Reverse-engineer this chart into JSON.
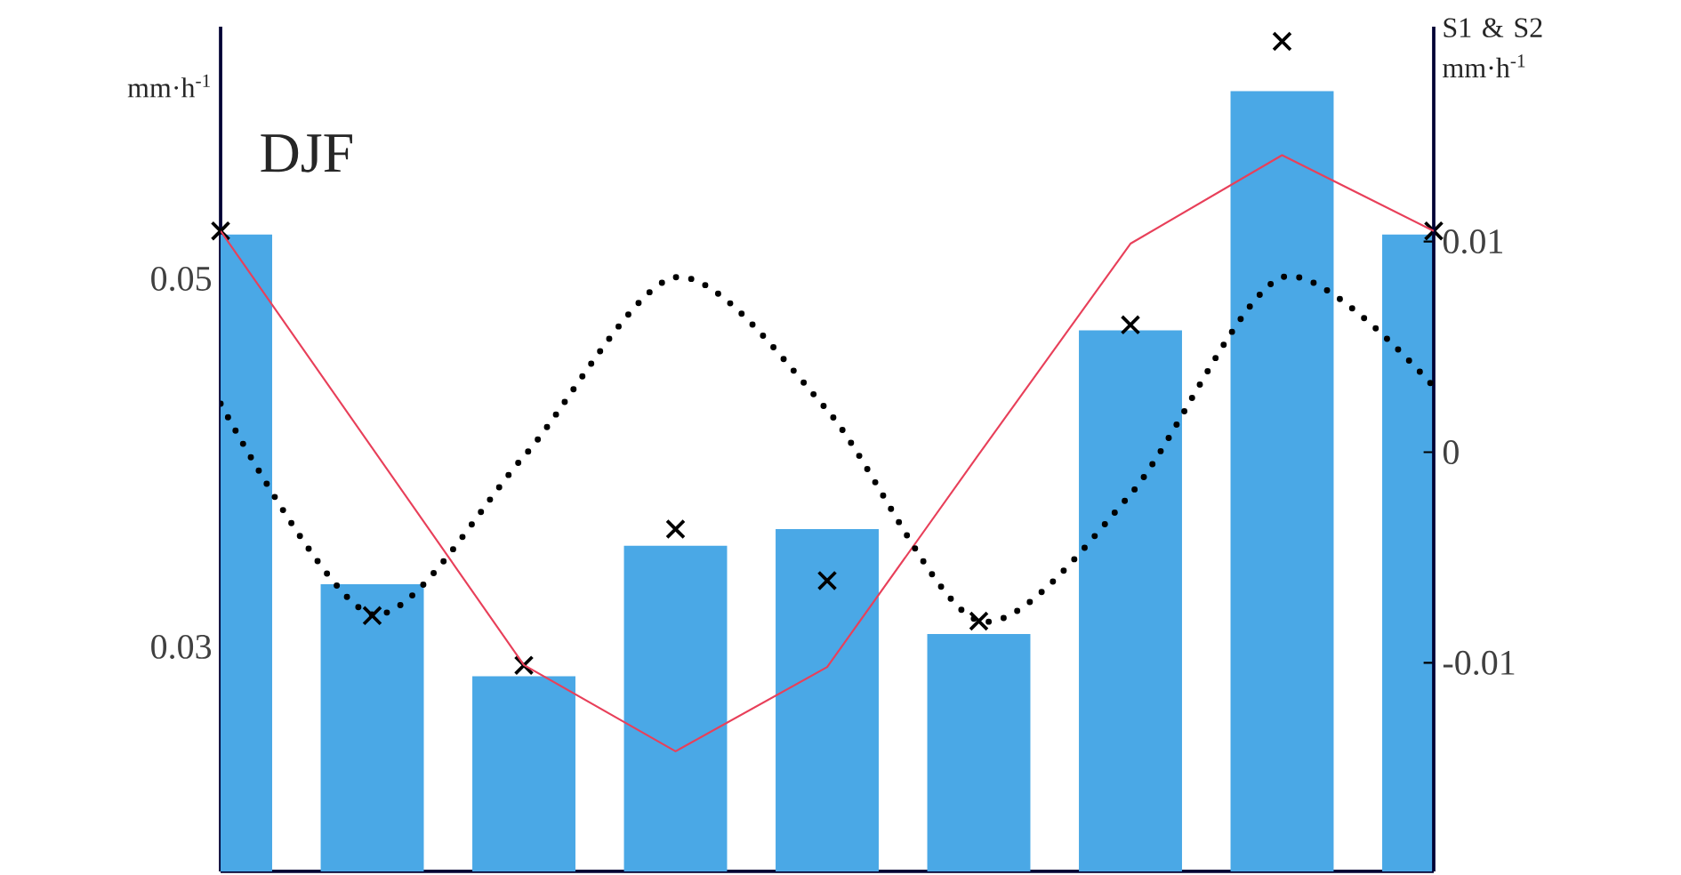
{
  "chart_data": {
    "type": "bar",
    "title": "DJF",
    "ylabel": "mm·h$^{-1}$",
    "y2label": "S1 & S2 mm·h$^{-1}$",
    "categories": [
      null,
      null,
      null,
      null,
      null,
      null,
      null,
      null,
      null
    ],
    "series": [
      {
        "color": "#4aa8e6",
        "values": [
          0.0524,
          0.0334,
          0.0284,
          0.0355,
          0.0364,
          0.0307,
          0.0472,
          0.0602,
          0.0524
        ]
      },
      {
        "type": "scatter",
        "color": "#000000",
        "marker": "cross",
        "values": [
          0.0526,
          0.0317,
          0.029,
          0.0364,
          0.0336,
          0.0314,
          0.0475,
          0.0629,
          0.0526
        ]
      },
      {
        "type": "line",
        "axis": "y2",
        "color": "#e8405a",
        "marker": "none",
        "line_style": "solid",
        "values": [
          0.0105,
          0.0002,
          -0.0101,
          -0.0142,
          -0.0102,
          -0.0001,
          0.0099,
          0.0141,
          0.0105
        ]
      },
      {
        "type": "line",
        "axis": "y2",
        "color": "#000000",
        "marker": "none",
        "line_style": "dotted",
        "values": [
          0.0023,
          -0.0077,
          -0.0002,
          0.0083,
          0.002,
          -0.008,
          -0.002,
          0.0083,
          0.0031
        ]
      }
    ],
    "ylim": [
      0.0178,
      0.0637
    ],
    "yticks": [
      0.03,
      0.05
    ],
    "y2lim": [
      -0.0199,
      0.0202
    ],
    "y2ticks": [
      -0.01,
      0,
      0.01
    ],
    "grid": false
  }
}
